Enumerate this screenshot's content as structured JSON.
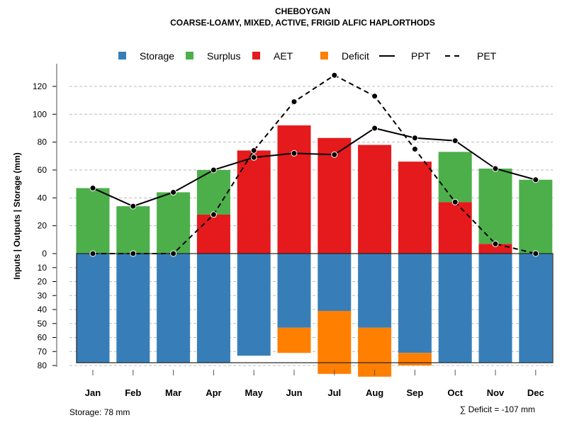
{
  "chart_data": {
    "type": "bar",
    "title": "CHEBOYGAN",
    "subtitle": "COARSE-LOAMY, MIXED, ACTIVE, FRIGID ALFIC HAPLORTHODS",
    "ylabel": "Inputs | Outputs | Storage    (mm)",
    "categories": [
      "Jan",
      "Feb",
      "Mar",
      "Apr",
      "May",
      "Jun",
      "Jul",
      "Aug",
      "Sep",
      "Oct",
      "Nov",
      "Dec"
    ],
    "ylim_top": [
      0,
      130
    ],
    "ylim_bottom": [
      0,
      80
    ],
    "yticks_top": [
      0,
      20,
      40,
      60,
      80,
      100,
      120
    ],
    "yticks_bottom": [
      10,
      20,
      30,
      40,
      50,
      60,
      70,
      80
    ],
    "legend": [
      "Storage",
      "Surplus",
      "AET",
      "Deficit",
      "PPT",
      "PET"
    ],
    "colors": {
      "Storage": "#377eb8",
      "Surplus": "#4daf4a",
      "AET": "#e41a1c",
      "Deficit": "#ff7f00"
    },
    "series": [
      {
        "name": "AET",
        "values": [
          0,
          0,
          0,
          28,
          74,
          92,
          83,
          78,
          66,
          37,
          7,
          0
        ]
      },
      {
        "name": "Surplus",
        "values": [
          47,
          34,
          44,
          32,
          0,
          0,
          0,
          0,
          0,
          36,
          54,
          53
        ]
      },
      {
        "name": "Storage",
        "values": [
          78,
          78,
          78,
          78,
          73,
          53,
          41,
          53,
          71,
          78,
          78,
          78
        ]
      },
      {
        "name": "Deficit",
        "values": [
          0,
          0,
          0,
          0,
          0,
          18,
          45,
          35,
          9,
          0,
          0,
          0
        ]
      },
      {
        "name": "PPT",
        "values": [
          47,
          34,
          44,
          60,
          69,
          72,
          71,
          90,
          83,
          81,
          61,
          53
        ]
      },
      {
        "name": "PET",
        "values": [
          0,
          0,
          0,
          28,
          74,
          109,
          128,
          113,
          75,
          37,
          7,
          0
        ]
      }
    ],
    "storage_note": "Storage: 78 mm",
    "deficit_note": "∑ Deficit = -107 mm"
  }
}
